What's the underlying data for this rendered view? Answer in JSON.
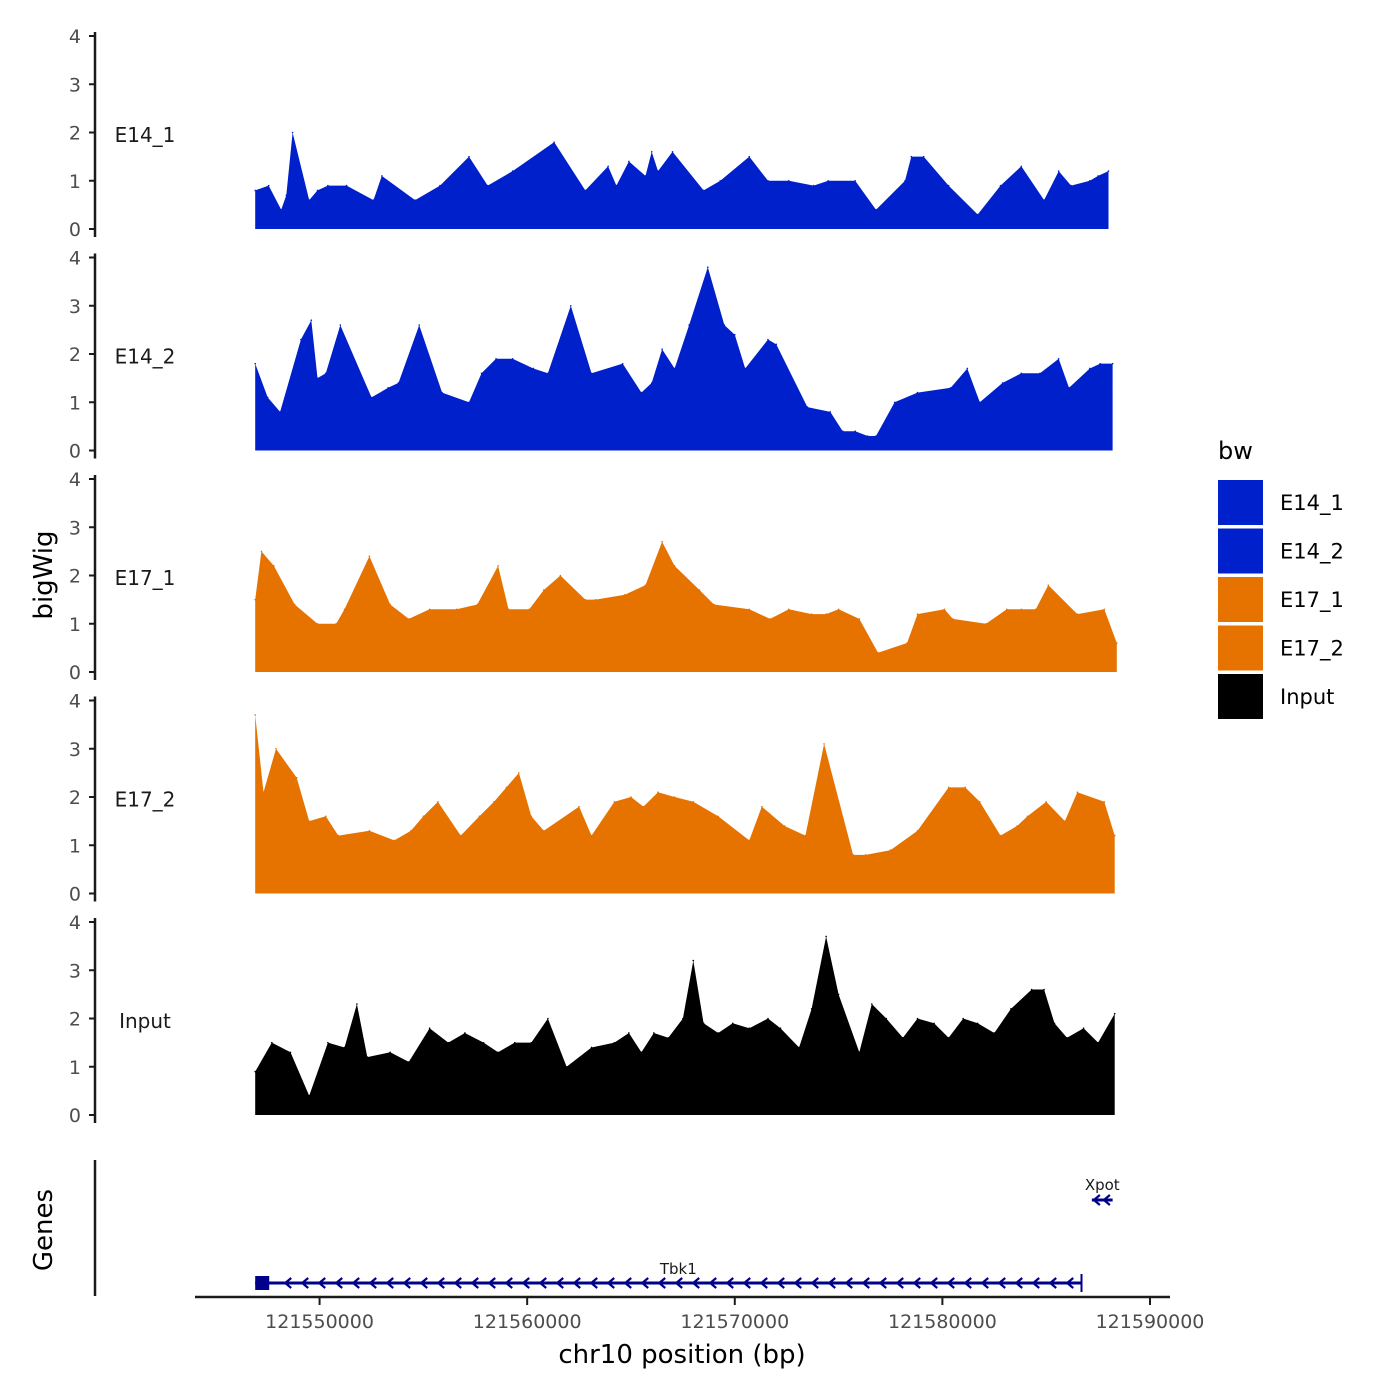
{
  "chart_data": {
    "type": "area",
    "chromosome": "chr10",
    "xlabel": "chr10 position (bp)",
    "ylabel": "bigWig",
    "genes_label": "Genes",
    "xlim": [
      121544000,
      121590000
    ],
    "x_ticks": [
      121550000,
      121560000,
      121570000,
      121580000,
      121590000
    ],
    "x_tick_labels": [
      "121550000",
      "121560000",
      "121570000",
      "121580000",
      "121590000"
    ],
    "ylim": [
      0,
      4
    ],
    "y_ticks": [
      0,
      1,
      2,
      3,
      4
    ],
    "y_tick_labels": [
      "0",
      "1",
      "2",
      "3",
      "4"
    ],
    "legend": {
      "title": "bw",
      "position": "right",
      "entries": [
        {
          "label": "E14_1",
          "color": "#0020cc"
        },
        {
          "label": "E14_2",
          "color": "#0020cc"
        },
        {
          "label": "E17_1",
          "color": "#e67300"
        },
        {
          "label": "E17_2",
          "color": "#e67300"
        },
        {
          "label": "Input",
          "color": "#000000"
        }
      ]
    },
    "series": [
      {
        "name": "E14_1",
        "color": "#0020cc",
        "x": [
          121546900,
          121547550,
          121548150,
          121548400,
          121548700,
          121549500,
          121549900,
          121550400,
          121551300,
          121552600,
          121553000,
          121554600,
          121555800,
          121557200,
          121558100,
          121559300,
          121561300,
          121562800,
          121563900,
          121564300,
          121564900,
          121565700,
          121566000,
          121566300,
          121567000,
          121568500,
          121569300,
          121570700,
          121571600,
          121572600,
          121573800,
          121574500,
          121575800,
          121576800,
          121578200,
          121578500,
          121579100,
          121580300,
          121581700,
          121582800,
          121583800,
          121584900,
          121585600,
          121586200,
          121587100,
          121587500,
          121588000
        ],
        "values": [
          0.8,
          0.9,
          0.4,
          0.7,
          2.0,
          0.6,
          0.8,
          0.9,
          0.9,
          0.6,
          1.1,
          0.6,
          0.9,
          1.5,
          0.9,
          1.2,
          1.8,
          0.8,
          1.3,
          0.9,
          1.4,
          1.1,
          1.6,
          1.2,
          1.6,
          0.8,
          1.0,
          1.5,
          1.0,
          1.0,
          0.9,
          1.0,
          1.0,
          0.4,
          1.0,
          1.5,
          1.5,
          0.9,
          0.3,
          0.9,
          1.3,
          0.6,
          1.2,
          0.9,
          1.0,
          1.1,
          1.2
        ]
      },
      {
        "name": "E14_2",
        "color": "#0020cc",
        "x": [
          121546900,
          121547500,
          121548100,
          121549100,
          121549600,
          121549900,
          121550300,
          121551000,
          121552500,
          121553300,
          121553800,
          121554800,
          121555900,
          121557200,
          121557800,
          121558500,
          121559300,
          121560300,
          121561000,
          121562100,
          121563100,
          121564600,
          121565500,
          121566000,
          121566500,
          121567100,
          121567800,
          121568700,
          121569500,
          121570000,
          121570500,
          121571600,
          121572000,
          121573500,
          121574600,
          121575200,
          121575800,
          121576400,
          121576800,
          121577700,
          121578800,
          121580400,
          121581200,
          121581800,
          121582900,
          121583800,
          121584700,
          121585600,
          121586100,
          121587100,
          121587600,
          121588200
        ],
        "values": [
          1.8,
          1.1,
          0.8,
          2.3,
          2.7,
          1.5,
          1.6,
          2.6,
          1.1,
          1.3,
          1.4,
          2.6,
          1.2,
          1.0,
          1.6,
          1.9,
          1.9,
          1.7,
          1.6,
          3.0,
          1.6,
          1.8,
          1.2,
          1.4,
          2.1,
          1.7,
          2.6,
          3.8,
          2.6,
          2.4,
          1.7,
          2.3,
          2.2,
          0.9,
          0.8,
          0.4,
          0.4,
          0.3,
          0.3,
          1.0,
          1.2,
          1.3,
          1.7,
          1.0,
          1.4,
          1.6,
          1.6,
          1.9,
          1.3,
          1.7,
          1.8,
          1.8
        ]
      },
      {
        "name": "E17_1",
        "color": "#e67300",
        "x": [
          121546900,
          121547200,
          121547800,
          121548800,
          121549900,
          121550800,
          121551200,
          121552400,
          121553400,
          121554300,
          121555300,
          121556600,
          121557600,
          121558600,
          121559100,
          121560100,
          121560800,
          121561600,
          121562800,
          121563300,
          121564700,
          121565700,
          121566500,
          121567100,
          121568300,
          121569000,
          121570700,
          121571700,
          121572600,
          121573700,
          121574400,
          121575000,
          121576000,
          121576900,
          121578300,
          121578800,
          121580100,
          121580500,
          121582100,
          121583100,
          121583800,
          121584500,
          121585100,
          121586500,
          121587800,
          121588400
        ],
        "values": [
          1.5,
          2.5,
          2.2,
          1.4,
          1.0,
          1.0,
          1.3,
          2.4,
          1.4,
          1.1,
          1.3,
          1.3,
          1.4,
          2.2,
          1.3,
          1.3,
          1.7,
          2.0,
          1.5,
          1.5,
          1.6,
          1.8,
          2.7,
          2.2,
          1.7,
          1.4,
          1.3,
          1.1,
          1.3,
          1.2,
          1.2,
          1.3,
          1.1,
          0.4,
          0.6,
          1.2,
          1.3,
          1.1,
          1.0,
          1.3,
          1.3,
          1.3,
          1.8,
          1.2,
          1.3,
          0.6
        ]
      },
      {
        "name": "E17_2",
        "color": "#e67300",
        "x": [
          121546900,
          121547300,
          121547900,
          121548900,
          121549500,
          121550300,
          121550900,
          121552400,
          121553600,
          121554400,
          121555000,
          121555700,
          121556800,
          121557700,
          121558400,
          121559000,
          121559600,
          121560200,
          121560800,
          121562500,
          121563100,
          121564200,
          121565000,
          121565600,
          121566300,
          121567100,
          121568000,
          121569200,
          121570700,
          121571300,
          121572400,
          121573400,
          121574300,
          121575700,
          121576300,
          121577500,
          121578800,
          121580300,
          121581100,
          121581800,
          121582800,
          121583600,
          121584100,
          121585000,
          121585900,
          121586500,
          121587800,
          121588300
        ],
        "values": [
          3.7,
          2.1,
          3.0,
          2.4,
          1.5,
          1.6,
          1.2,
          1.3,
          1.1,
          1.3,
          1.6,
          1.9,
          1.2,
          1.6,
          1.9,
          2.2,
          2.5,
          1.6,
          1.3,
          1.8,
          1.2,
          1.9,
          2.0,
          1.8,
          2.1,
          2.0,
          1.9,
          1.6,
          1.1,
          1.8,
          1.4,
          1.2,
          3.1,
          0.8,
          0.8,
          0.9,
          1.3,
          2.2,
          2.2,
          1.9,
          1.2,
          1.4,
          1.6,
          1.9,
          1.5,
          2.1,
          1.9,
          1.2
        ]
      },
      {
        "name": "Input",
        "color": "#000000",
        "x": [
          121546900,
          121547700,
          121548600,
          121549500,
          121550400,
          121551200,
          121551800,
          121552300,
          121553400,
          121554300,
          121555300,
          121556200,
          121557000,
          121557900,
          121558600,
          121559400,
          121560200,
          121561000,
          121561900,
          121563100,
          121564200,
          121564900,
          121565500,
          121566100,
          121566800,
          121567500,
          121568000,
          121568500,
          121569200,
          121569900,
          121570700,
          121571600,
          121572200,
          121573100,
          121573700,
          121574400,
          121575000,
          121576000,
          121576600,
          121577300,
          121578100,
          121578800,
          121579600,
          121580300,
          121581000,
          121581700,
          121582500,
          121583300,
          121584300,
          121584900,
          121585400,
          121586000,
          121586800,
          121587500,
          121588300
        ],
        "values": [
          0.9,
          1.5,
          1.3,
          0.4,
          1.5,
          1.4,
          2.3,
          1.2,
          1.3,
          1.1,
          1.8,
          1.5,
          1.7,
          1.5,
          1.3,
          1.5,
          1.5,
          2.0,
          1.0,
          1.4,
          1.5,
          1.7,
          1.3,
          1.7,
          1.6,
          2.0,
          3.2,
          1.9,
          1.7,
          1.9,
          1.8,
          2.0,
          1.8,
          1.4,
          2.2,
          3.7,
          2.5,
          1.3,
          2.3,
          2.0,
          1.6,
          2.0,
          1.9,
          1.6,
          2.0,
          1.9,
          1.7,
          2.2,
          2.6,
          2.6,
          1.9,
          1.6,
          1.8,
          1.5,
          2.1
        ]
      }
    ],
    "genes": [
      {
        "name": "Tbk1",
        "start": 121546900,
        "end": 121586700,
        "strand": "-"
      },
      {
        "name": "Xpot",
        "start": 121587200,
        "end": 121588200,
        "strand": "-"
      }
    ]
  }
}
